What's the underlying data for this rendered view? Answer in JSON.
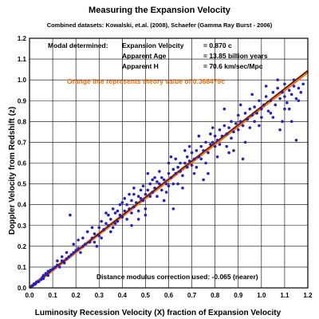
{
  "chart_data": {
    "type": "scatter",
    "title": "Measuring the Expansion Velocity",
    "subtitle": "Combined datasets:  Kowalski, et.al. (2008),  Schaefer (Gamma Ray Burst - 2006)",
    "xlabel": "Luminosity Recession Velocity (X) fraction of Expansion Velocity",
    "ylabel": "Doppler Velocity from Redshift (z)",
    "xlim": [
      0,
      1.2
    ],
    "ylim": [
      0,
      1.2
    ],
    "grid": true,
    "x_ticks": [
      "0.0",
      "0.1",
      "0.2",
      "0.3",
      "0.4",
      "0.5",
      "0.6",
      "0.7",
      "0.8",
      "0.9",
      "1.0",
      "1.1",
      "1.2"
    ],
    "y_ticks": [
      "0.0",
      "0.1",
      "0.2",
      "0.3",
      "0.4",
      "0.5",
      "0.6",
      "0.7",
      "0.8",
      "0.9",
      "1.0",
      "1.1",
      "1.2"
    ],
    "annotations": {
      "modal_label": "Modal determined:",
      "rows": [
        {
          "label": "Expansion Velocity",
          "value": "= 0.870 c"
        },
        {
          "label": "Apparent Age",
          "value": "= 13.85 billion years"
        },
        {
          "label": "Apparent H",
          "value": "= 70.6 km/sec/Mpc"
        }
      ],
      "theory_note": "Orange line represents theory value of 0.368479c",
      "distance_note": "Distance modulus correction used:  -0.065 (nearer)"
    },
    "theory_line": {
      "x": [
        0,
        1.2
      ],
      "y": [
        0,
        1.04
      ],
      "color": "#ff6a00"
    },
    "fit_line": {
      "x": [
        0,
        1.2
      ],
      "y": [
        0,
        1.045
      ],
      "color": "#000000"
    },
    "point_color": "#2020d0",
    "points": [
      [
        0.01,
        0.01
      ],
      [
        0.015,
        0.012
      ],
      [
        0.02,
        0.02
      ],
      [
        0.025,
        0.018
      ],
      [
        0.03,
        0.028
      ],
      [
        0.035,
        0.03
      ],
      [
        0.04,
        0.03
      ],
      [
        0.05,
        0.04
      ],
      [
        0.055,
        0.05
      ],
      [
        0.06,
        0.045
      ],
      [
        0.07,
        0.07
      ],
      [
        0.08,
        0.06
      ],
      [
        0.09,
        0.085
      ],
      [
        0.1,
        0.09
      ],
      [
        0.11,
        0.1
      ],
      [
        0.12,
        0.11
      ],
      [
        0.13,
        0.1
      ],
      [
        0.14,
        0.13
      ],
      [
        0.15,
        0.12
      ],
      [
        0.16,
        0.14
      ],
      [
        0.17,
        0.15
      ],
      [
        0.175,
        0.35
      ],
      [
        0.18,
        0.16
      ],
      [
        0.19,
        0.17
      ],
      [
        0.2,
        0.18
      ],
      [
        0.21,
        0.19
      ],
      [
        0.22,
        0.17
      ],
      [
        0.23,
        0.2
      ],
      [
        0.24,
        0.21
      ],
      [
        0.25,
        0.27
      ],
      [
        0.26,
        0.22
      ],
      [
        0.27,
        0.24
      ],
      [
        0.28,
        0.26
      ],
      [
        0.29,
        0.2
      ],
      [
        0.3,
        0.29
      ],
      [
        0.3,
        0.25
      ],
      [
        0.31,
        0.24
      ],
      [
        0.32,
        0.28
      ],
      [
        0.33,
        0.31
      ],
      [
        0.34,
        0.3
      ],
      [
        0.35,
        0.33
      ],
      [
        0.35,
        0.27
      ],
      [
        0.36,
        0.29
      ],
      [
        0.37,
        0.36
      ],
      [
        0.38,
        0.32
      ],
      [
        0.38,
        0.37
      ],
      [
        0.39,
        0.35
      ],
      [
        0.4,
        0.34
      ],
      [
        0.4,
        0.41
      ],
      [
        0.41,
        0.37
      ],
      [
        0.42,
        0.4
      ],
      [
        0.42,
        0.33
      ],
      [
        0.43,
        0.38
      ],
      [
        0.44,
        0.42
      ],
      [
        0.44,
        0.36
      ],
      [
        0.45,
        0.39
      ],
      [
        0.45,
        0.45
      ],
      [
        0.46,
        0.41
      ],
      [
        0.47,
        0.44
      ],
      [
        0.47,
        0.37
      ],
      [
        0.48,
        0.43
      ],
      [
        0.48,
        0.47
      ],
      [
        0.49,
        0.42
      ],
      [
        0.5,
        0.45
      ],
      [
        0.5,
        0.38
      ],
      [
        0.51,
        0.47
      ],
      [
        0.52,
        0.44
      ],
      [
        0.52,
        0.5
      ],
      [
        0.53,
        0.46
      ],
      [
        0.54,
        0.48
      ],
      [
        0.55,
        0.51
      ],
      [
        0.55,
        0.44
      ],
      [
        0.56,
        0.5
      ],
      [
        0.57,
        0.53
      ],
      [
        0.57,
        0.47
      ],
      [
        0.58,
        0.52
      ],
      [
        0.59,
        0.5
      ],
      [
        0.6,
        0.55
      ],
      [
        0.6,
        0.49
      ],
      [
        0.61,
        0.53
      ],
      [
        0.62,
        0.57
      ],
      [
        0.62,
        0.5
      ],
      [
        0.63,
        0.55
      ],
      [
        0.64,
        0.58
      ],
      [
        0.65,
        0.56
      ],
      [
        0.65,
        0.6
      ],
      [
        0.66,
        0.54
      ],
      [
        0.67,
        0.6
      ],
      [
        0.68,
        0.58
      ],
      [
        0.68,
        0.63
      ],
      [
        0.69,
        0.61
      ],
      [
        0.7,
        0.59
      ],
      [
        0.7,
        0.65
      ],
      [
        0.71,
        0.62
      ],
      [
        0.72,
        0.66
      ],
      [
        0.72,
        0.58
      ],
      [
        0.73,
        0.63
      ],
      [
        0.74,
        0.68
      ],
      [
        0.74,
        0.62
      ],
      [
        0.75,
        0.66
      ],
      [
        0.76,
        0.7
      ],
      [
        0.77,
        0.65
      ],
      [
        0.78,
        0.69
      ],
      [
        0.78,
        0.74
      ],
      [
        0.79,
        0.7
      ],
      [
        0.8,
        0.68
      ],
      [
        0.8,
        0.73
      ],
      [
        0.81,
        0.71
      ],
      [
        0.82,
        0.76
      ],
      [
        0.82,
        0.69
      ],
      [
        0.83,
        0.73
      ],
      [
        0.84,
        0.78
      ],
      [
        0.85,
        0.74
      ],
      [
        0.85,
        0.68
      ],
      [
        0.86,
        0.77
      ],
      [
        0.87,
        0.8
      ],
      [
        0.88,
        0.75
      ],
      [
        0.89,
        0.79
      ],
      [
        0.9,
        0.76
      ],
      [
        0.9,
        0.83
      ],
      [
        0.91,
        0.8
      ],
      [
        0.92,
        0.78
      ],
      [
        0.93,
        0.84
      ],
      [
        0.94,
        0.81
      ],
      [
        0.95,
        0.86
      ],
      [
        0.96,
        0.83
      ],
      [
        0.97,
        0.87
      ],
      [
        0.98,
        0.84
      ],
      [
        0.99,
        0.9
      ],
      [
        1.0,
        0.86
      ],
      [
        1.0,
        0.82
      ],
      [
        1.01,
        0.88
      ],
      [
        1.02,
        0.92
      ],
      [
        1.03,
        0.85
      ],
      [
        1.04,
        0.9
      ],
      [
        1.05,
        0.94
      ],
      [
        1.06,
        0.88
      ],
      [
        1.07,
        0.96
      ],
      [
        1.08,
        0.91
      ],
      [
        1.08,
        0.76
      ],
      [
        1.09,
        0.94
      ],
      [
        1.1,
        0.92
      ],
      [
        1.1,
        0.98
      ],
      [
        1.11,
        0.89
      ],
      [
        1.12,
        0.95
      ],
      [
        1.13,
        0.93
      ],
      [
        1.14,
        0.97
      ],
      [
        1.15,
        0.91
      ],
      [
        1.15,
        0.71
      ],
      [
        1.16,
        0.96
      ],
      [
        1.17,
        0.94
      ],
      [
        1.18,
        0.98
      ],
      [
        1.13,
        0.8
      ],
      [
        1.12,
        0.86
      ],
      [
        0.93,
        0.7
      ],
      [
        0.88,
        0.66
      ],
      [
        0.76,
        0.6
      ],
      [
        0.64,
        0.5
      ],
      [
        0.58,
        0.42
      ],
      [
        0.5,
        0.35
      ],
      [
        0.47,
        0.33
      ],
      [
        0.62,
        0.38
      ],
      [
        0.96,
        0.93
      ],
      [
        1.05,
        0.82
      ],
      [
        1.09,
        0.8
      ],
      [
        0.84,
        0.86
      ],
      [
        0.73,
        0.73
      ],
      [
        0.67,
        0.66
      ],
      [
        0.45,
        0.48
      ],
      [
        0.56,
        0.56
      ],
      [
        0.43,
        0.45
      ],
      [
        0.39,
        0.4
      ],
      [
        0.36,
        0.38
      ],
      [
        0.34,
        0.35
      ],
      [
        0.31,
        0.32
      ],
      [
        0.54,
        0.53
      ],
      [
        0.6,
        0.6
      ],
      [
        0.69,
        0.68
      ],
      [
        0.79,
        0.77
      ],
      [
        0.91,
        0.88
      ],
      [
        1.02,
        0.97
      ],
      [
        1.07,
        1.0
      ],
      [
        1.1,
        0.86
      ],
      [
        0.99,
        0.78
      ],
      [
        0.97,
        0.8
      ],
      [
        0.87,
        0.72
      ],
      [
        0.81,
        0.63
      ],
      [
        0.71,
        0.55
      ],
      [
        0.63,
        0.62
      ],
      [
        0.53,
        0.52
      ],
      [
        0.41,
        0.43
      ],
      [
        0.33,
        0.36
      ],
      [
        0.27,
        0.29
      ],
      [
        0.23,
        0.24
      ],
      [
        0.19,
        0.21
      ],
      [
        0.14,
        0.15
      ],
      [
        0.44,
        0.3
      ],
      [
        0.49,
        0.49
      ],
      [
        0.59,
        0.46
      ],
      [
        0.66,
        0.48
      ],
      [
        0.75,
        0.52
      ],
      [
        0.86,
        0.65
      ],
      [
        0.95,
        0.77
      ],
      [
        1.04,
        0.84
      ],
      [
        1.14,
        1.0
      ],
      [
        1.16,
        0.9
      ],
      [
        0.92,
        0.62
      ],
      [
        0.77,
        0.55
      ],
      [
        0.61,
        0.63
      ],
      [
        0.51,
        0.55
      ],
      [
        0.37,
        0.31
      ],
      [
        0.28,
        0.22
      ],
      [
        0.21,
        0.23
      ],
      [
        0.16,
        0.17
      ],
      [
        0.12,
        0.13
      ],
      [
        0.08,
        0.08
      ],
      [
        0.06,
        0.06
      ]
    ]
  }
}
